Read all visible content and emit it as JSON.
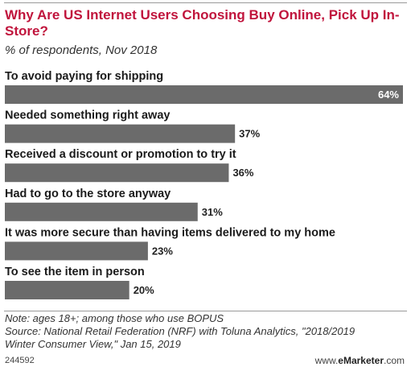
{
  "title": "Why Are US Internet Users Choosing Buy Online, Pick Up In-Store?",
  "subtitle": "% of respondents, Nov 2018",
  "chart_data": {
    "type": "bar",
    "orientation": "horizontal",
    "title": "Why Are US Internet Users Choosing Buy Online, Pick Up In-Store?",
    "subtitle": "% of respondents, Nov 2018",
    "categories": [
      "To avoid paying for shipping",
      "Needed something right away",
      "Received a discount or promotion to try it",
      "Had to go to the store anyway",
      "It was more secure than having items delivered to my home",
      "To see the item in person"
    ],
    "values": [
      64,
      37,
      36,
      31,
      23,
      20
    ],
    "value_labels": [
      "64%",
      "37%",
      "36%",
      "31%",
      "23%",
      "20%"
    ],
    "xlim": [
      0,
      64
    ],
    "grid": false,
    "legend": "none",
    "bar_color": "#6b6b6b",
    "label_inside_color": "#ffffff",
    "label_outside_color": "#222222"
  },
  "footer": {
    "note_line_1": "Note: ages 18+; among those who use BOPUS",
    "note_line_2": "Source: National Retail Federation (NRF) with Toluna Analytics, \"2018/2019",
    "note_line_3": "Winter Consumer View,\" Jan 15, 2019",
    "chart_id": "244592",
    "brand_prefix": "www.",
    "brand_name": "eMarketer",
    "brand_suffix": ".com"
  },
  "colors": {
    "title": "#c0143c",
    "bar": "#6b6b6b"
  }
}
